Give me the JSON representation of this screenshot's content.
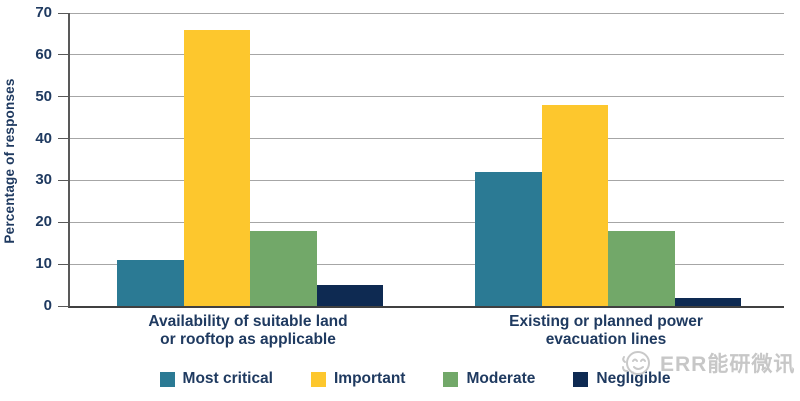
{
  "chart_data": {
    "type": "bar",
    "title": "",
    "xlabel": "",
    "ylabel": "Percentage of responses",
    "ylim": [
      0,
      70
    ],
    "yticks": [
      0,
      10,
      20,
      30,
      40,
      50,
      60,
      70
    ],
    "grid": true,
    "legend_position": "bottom",
    "categories": [
      "Availability of suitable land\nor rooftop as applicable",
      "Existing or planned power\nevacuation lines"
    ],
    "series": [
      {
        "name": "Most critical",
        "color": "#2B7A94",
        "values": [
          11,
          32
        ]
      },
      {
        "name": "Important",
        "color": "#FDC72D",
        "values": [
          66,
          48
        ]
      },
      {
        "name": "Moderate",
        "color": "#72A869",
        "values": [
          18,
          18
        ]
      },
      {
        "name": "Negligible",
        "color": "#0E2A52",
        "values": [
          5,
          2
        ]
      }
    ]
  },
  "watermark": {
    "icon": "smiley-face-icon",
    "text": "ERR能研微讯",
    "color": "#C7C7C7"
  },
  "colors": {
    "axis_text": "#1F3A60",
    "gridline": "#A6A6A6",
    "axis_line": "#404040"
  }
}
